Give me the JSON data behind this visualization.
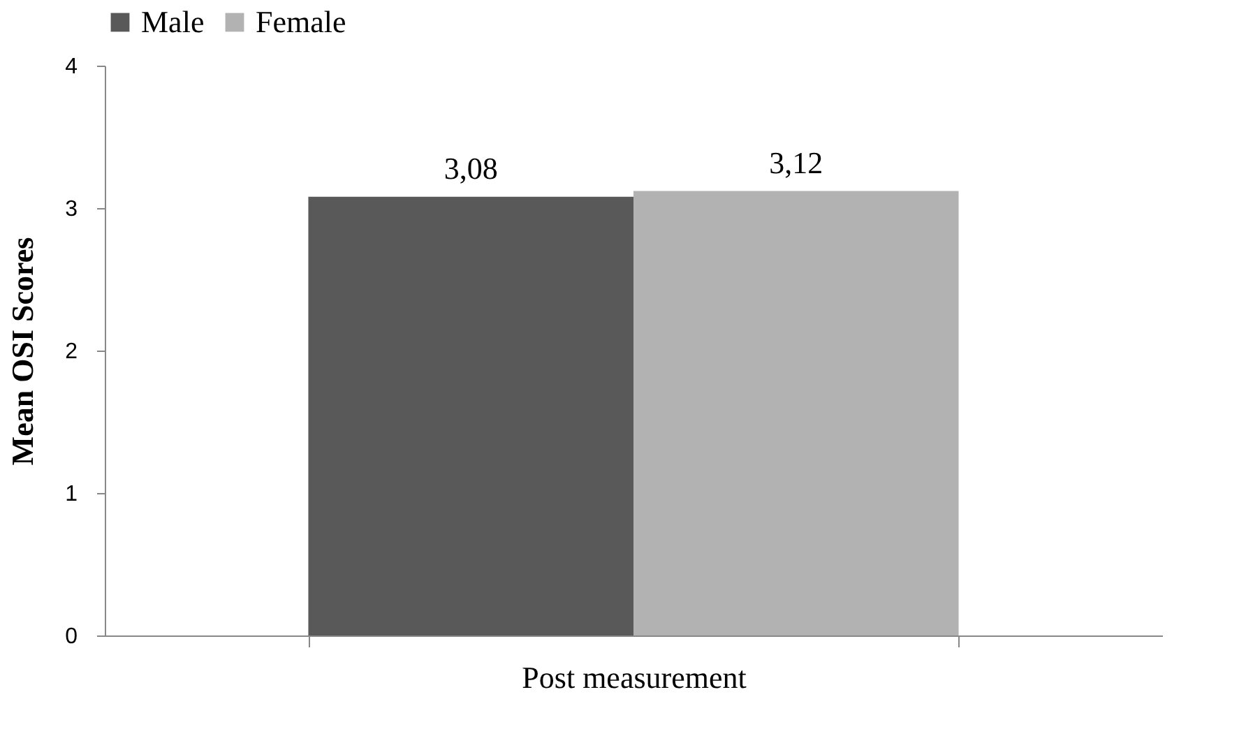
{
  "chart_data": {
    "type": "bar",
    "categories": [
      "Post measurement"
    ],
    "ylabel": "Mean OSI Scores",
    "ylim": [
      0,
      4
    ],
    "yticks": [
      0,
      1,
      2,
      3,
      4
    ],
    "grid": false,
    "legend": "top",
    "series": [
      {
        "name": "Male",
        "color": "#595959",
        "values": [
          3.08
        ],
        "value_labels": [
          "3,08"
        ]
      },
      {
        "name": "Female",
        "color": "#b2b2b2",
        "values": [
          3.12
        ],
        "value_labels": [
          "3,12"
        ]
      }
    ]
  }
}
